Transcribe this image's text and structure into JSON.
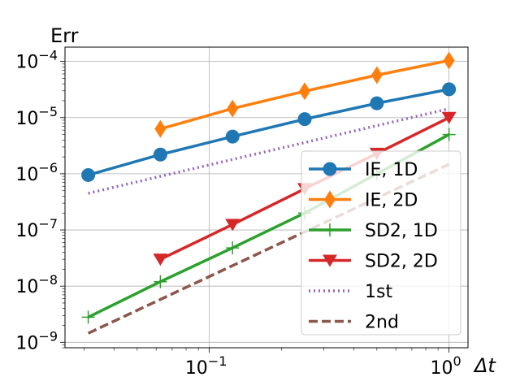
{
  "chart_data": {
    "type": "line",
    "title": "Err",
    "xlabel": "Δt",
    "ylabel": "",
    "x_scale": "log",
    "y_scale": "log",
    "xlim": [
      0.025,
      1.2
    ],
    "ylim": [
      8e-10,
      0.00018
    ],
    "grid": true,
    "legend_position": "lower-right",
    "x_ticks": [
      {
        "value": 0.1,
        "base": "10",
        "exp": "−1"
      },
      {
        "value": 1,
        "base": "10",
        "exp": "0"
      }
    ],
    "y_ticks": [
      {
        "value": 1e-09,
        "base": "10",
        "exp": "−9"
      },
      {
        "value": 1e-08,
        "base": "10",
        "exp": "−8"
      },
      {
        "value": 1e-07,
        "base": "10",
        "exp": "−7"
      },
      {
        "value": 1e-06,
        "base": "10",
        "exp": "−6"
      },
      {
        "value": 1e-05,
        "base": "10",
        "exp": "−5"
      },
      {
        "value": 0.0001,
        "base": "10",
        "exp": "−4"
      }
    ],
    "series": [
      {
        "name": "IE, 1D",
        "color": "#1f77b4",
        "marker": "circle",
        "line": "solid",
        "x": [
          0.03125,
          0.0625,
          0.125,
          0.25,
          0.5,
          1.0
        ],
        "y": [
          9.5e-07,
          2.2e-06,
          4.6e-06,
          9.4e-06,
          1.8e-05,
          3.2e-05
        ]
      },
      {
        "name": "IE, 2D",
        "color": "#ff7f0e",
        "marker": "diamond",
        "line": "solid",
        "x": [
          0.0625,
          0.125,
          0.25,
          0.5,
          1.0
        ],
        "y": [
          6.3e-06,
          1.45e-05,
          2.95e-05,
          5.7e-05,
          0.000104
        ]
      },
      {
        "name": "SD2, 1D",
        "color": "#2ca02c",
        "marker": "plus",
        "line": "solid",
        "x": [
          0.03125,
          0.0625,
          0.125,
          0.25,
          0.5,
          1.0
        ],
        "y": [
          2.8e-09,
          1.2e-08,
          4.8e-08,
          2e-07,
          1e-06,
          5e-06
        ]
      },
      {
        "name": "SD2, 2D",
        "color": "#d62728",
        "marker": "triangle-down",
        "line": "solid",
        "x": [
          0.0625,
          0.125,
          0.25,
          0.5,
          1.0
        ],
        "y": [
          3e-08,
          1.25e-07,
          5.4e-07,
          2.3e-06,
          1e-05
        ]
      },
      {
        "name": "1st",
        "color": "#9467bd",
        "marker": "none",
        "line": "dotted",
        "x": [
          0.03125,
          1.0
        ],
        "y": [
          4.5e-07,
          1.44e-05
        ]
      },
      {
        "name": "2nd",
        "color": "#8c564b",
        "marker": "none",
        "line": "dashed",
        "x": [
          0.03125,
          1.0
        ],
        "y": [
          1.45e-09,
          1.48e-06
        ]
      }
    ]
  }
}
